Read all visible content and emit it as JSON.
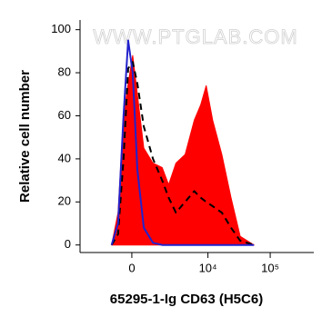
{
  "chart_data": {
    "type": "area",
    "watermark": "WWW.PTGLAB.COM",
    "x_label": "65295-1-Ig CD63 (H5C6)",
    "y_label": "Relative cell number",
    "x_scale": "biexponential",
    "xlim": [
      -4000,
      500000
    ],
    "xticks": [
      0,
      {
        "value": 10000,
        "label": "10⁴"
      },
      {
        "value": 100000,
        "label": "10⁵"
      }
    ],
    "ylim": [
      -3.5,
      104.5
    ],
    "yticks": [
      0,
      20,
      40,
      60,
      80,
      100
    ],
    "x": [
      -987,
      -641,
      -375,
      -164,
      41,
      247,
      550,
      1042,
      1655,
      2196,
      2956,
      4233,
      5997,
      7629,
      9382,
      11921,
      16745,
      23503,
      32994,
      54852
    ],
    "series": [
      {
        "color": "#ff0000",
        "fill": true,
        "line_style": "solid",
        "values": [
          0,
          15,
          60,
          75,
          88,
          70,
          45,
          38,
          36,
          28,
          38,
          42,
          58,
          65,
          74,
          58,
          42,
          22,
          4,
          0
        ]
      },
      {
        "color": "#000000",
        "fill": false,
        "line_style": "dashed",
        "values": [
          0,
          5,
          40,
          82,
          85,
          75,
          55,
          40,
          30,
          22,
          15,
          20,
          25,
          22,
          20,
          18,
          15,
          8,
          2,
          0
        ]
      },
      {
        "color": "#2222cc",
        "fill": false,
        "line_style": "solid",
        "values": [
          0,
          10,
          60,
          95,
          80,
          35,
          8,
          1,
          0,
          0,
          0,
          0,
          0,
          0,
          0,
          0,
          0,
          0,
          0,
          0
        ]
      }
    ]
  }
}
